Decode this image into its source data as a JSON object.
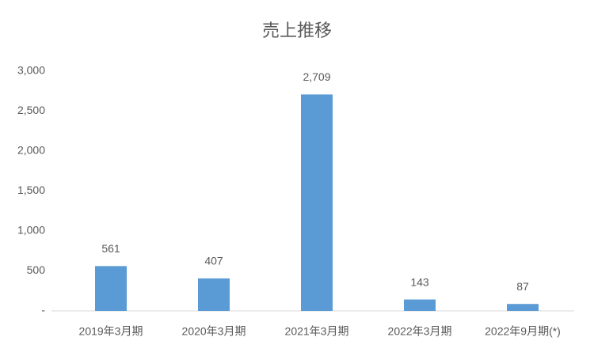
{
  "chart_data": {
    "type": "bar",
    "title": "売上推移",
    "categories": [
      "2019年3月期",
      "2020年3月期",
      "2021年3月期",
      "2022年3月期",
      "2022年9月期(*)"
    ],
    "values": [
      561,
      407,
      2709,
      143,
      87
    ],
    "value_labels": [
      "561",
      "407",
      "2,709",
      "143",
      "87"
    ],
    "color": "#5b9bd5",
    "ylim": [
      0,
      3000
    ],
    "yticks": [
      {
        "value": 0,
        "label": "-"
      },
      500,
      {
        "value": 1000,
        "label": "1,000"
      },
      {
        "value": 1500,
        "label": "1,500"
      },
      {
        "value": 2000,
        "label": "2,000"
      },
      {
        "value": 2500,
        "label": "2,500"
      },
      {
        "value": 3000,
        "label": "3,000"
      }
    ],
    "grid": false
  }
}
